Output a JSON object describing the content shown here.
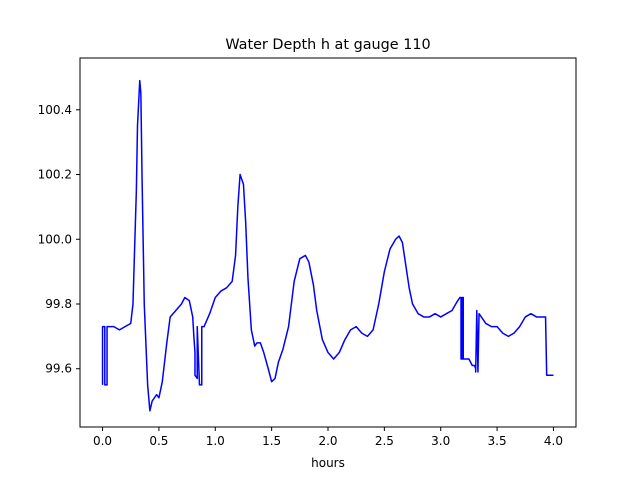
{
  "chart_data": {
    "type": "line",
    "title": "Water Depth h at gauge 110",
    "xlabel": "hours",
    "ylabel": "",
    "xlim": [
      -0.2,
      4.2
    ],
    "ylim": [
      99.42,
      100.56
    ],
    "xticks": [
      0.0,
      0.5,
      1.0,
      1.5,
      2.0,
      2.5,
      3.0,
      3.5,
      4.0
    ],
    "xtick_labels": [
      "0.0",
      "0.5",
      "1.0",
      "1.5",
      "2.0",
      "2.5",
      "3.0",
      "3.5",
      "4.0"
    ],
    "yticks": [
      99.6,
      99.8,
      100.0,
      100.2,
      100.4
    ],
    "ytick_labels": [
      "99.6",
      "99.8",
      "100.0",
      "100.2",
      "100.4"
    ],
    "grid": false,
    "legend": "none",
    "series": [
      {
        "color": "#0000ff",
        "x": [
          0.0,
          0.0,
          0.02,
          0.02,
          0.04,
          0.04,
          0.05,
          0.1,
          0.15,
          0.2,
          0.25,
          0.27,
          0.28,
          0.3,
          0.31,
          0.33,
          0.34,
          0.35,
          0.37,
          0.4,
          0.42,
          0.44,
          0.48,
          0.5,
          0.53,
          0.57,
          0.6,
          0.65,
          0.7,
          0.73,
          0.77,
          0.8,
          0.81,
          0.82,
          0.82,
          0.84,
          0.84,
          0.86,
          0.87,
          0.88,
          0.88,
          0.9,
          0.95,
          1.0,
          1.05,
          1.1,
          1.15,
          1.18,
          1.2,
          1.22,
          1.25,
          1.27,
          1.29,
          1.32,
          1.35,
          1.37,
          1.4,
          1.43,
          1.47,
          1.5,
          1.53,
          1.56,
          1.6,
          1.65,
          1.7,
          1.75,
          1.8,
          1.83,
          1.87,
          1.9,
          1.95,
          2.0,
          2.05,
          2.1,
          2.15,
          2.2,
          2.25,
          2.3,
          2.35,
          2.4,
          2.45,
          2.5,
          2.55,
          2.6,
          2.63,
          2.66,
          2.69,
          2.72,
          2.75,
          2.8,
          2.85,
          2.9,
          2.95,
          3.0,
          3.05,
          3.1,
          3.15,
          3.17,
          3.18,
          3.18,
          3.19,
          3.19,
          3.2,
          3.2,
          3.22,
          3.25,
          3.28,
          3.3,
          3.31,
          3.31,
          3.32,
          3.32,
          3.33,
          3.33,
          3.34,
          3.36,
          3.4,
          3.45,
          3.5,
          3.55,
          3.6,
          3.65,
          3.7,
          3.75,
          3.8,
          3.85,
          3.9,
          3.93,
          3.94,
          3.94,
          3.96,
          3.98,
          4.0
        ],
        "y": [
          99.55,
          99.73,
          99.73,
          99.55,
          99.55,
          99.73,
          99.73,
          99.73,
          99.72,
          99.73,
          99.74,
          99.8,
          99.92,
          100.15,
          100.35,
          100.49,
          100.45,
          100.2,
          99.8,
          99.55,
          99.47,
          99.5,
          99.52,
          99.51,
          99.56,
          99.68,
          99.76,
          99.78,
          99.8,
          99.82,
          99.81,
          99.76,
          99.7,
          99.65,
          99.58,
          99.57,
          99.73,
          99.55,
          99.55,
          99.55,
          99.73,
          99.73,
          99.77,
          99.82,
          99.84,
          99.85,
          99.87,
          99.95,
          100.1,
          100.2,
          100.17,
          100.05,
          99.88,
          99.72,
          99.67,
          99.68,
          99.68,
          99.65,
          99.6,
          99.56,
          99.57,
          99.62,
          99.66,
          99.73,
          99.87,
          99.94,
          99.95,
          99.93,
          99.86,
          99.78,
          99.69,
          99.65,
          99.63,
          99.65,
          99.69,
          99.72,
          99.73,
          99.71,
          99.7,
          99.72,
          99.8,
          99.9,
          99.97,
          100.0,
          100.01,
          99.99,
          99.92,
          99.85,
          99.8,
          99.77,
          99.76,
          99.76,
          99.77,
          99.76,
          99.77,
          99.78,
          99.81,
          99.82,
          99.82,
          99.63,
          99.63,
          99.82,
          99.82,
          99.63,
          99.63,
          99.63,
          99.61,
          99.61,
          99.6,
          99.59,
          99.78,
          99.78,
          99.59,
          99.59,
          99.77,
          99.76,
          99.74,
          99.73,
          99.73,
          99.71,
          99.7,
          99.71,
          99.73,
          99.76,
          99.77,
          99.76,
          99.76,
          99.76,
          99.58,
          99.58,
          99.58,
          99.58,
          99.58
        ]
      }
    ]
  }
}
